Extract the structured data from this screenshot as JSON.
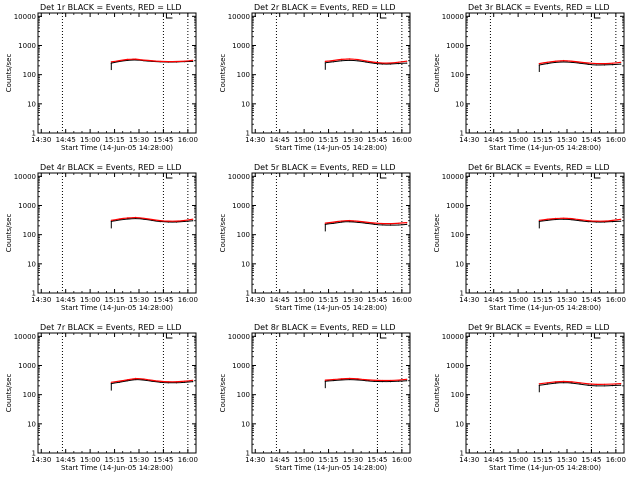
{
  "chart_data": [
    {
      "type": "line",
      "title": "Det 1r  BLACK = Events, RED = LLD",
      "xlabel": "Start Time (14-Jun-05 14:28:00)",
      "ylabel": "Counts/sec",
      "x_ticks": [
        "14:30",
        "14:45",
        "15:00",
        "15:15",
        "15:30",
        "15:45",
        "16:00"
      ],
      "y_ticks": [
        "1",
        "10",
        "100",
        "1000",
        "10000"
      ],
      "xlim": [
        "14:28",
        "16:05"
      ],
      "ylim": [
        1,
        13000
      ],
      "y_scale": "log",
      "vlines_dotted": [
        "14:43",
        "15:45",
        "16:00"
      ],
      "x": [
        "15:13",
        "15:18",
        "15:23",
        "15:28",
        "15:33",
        "15:38",
        "15:43",
        "15:48",
        "15:53",
        "15:58",
        "16:03"
      ],
      "series": [
        {
          "name": "Events",
          "color": "#000000",
          "values": [
            250,
            285,
            310,
            320,
            300,
            285,
            275,
            270,
            270,
            280,
            285
          ]
        },
        {
          "name": "LLD",
          "color": "#ff0000",
          "values": [
            275,
            300,
            335,
            345,
            315,
            300,
            285,
            280,
            280,
            290,
            310
          ]
        }
      ]
    },
    {
      "type": "line",
      "title": "Det 2r  BLACK = Events, RED = LLD",
      "xlabel": "Start Time (14-Jun-05 14:28:00)",
      "ylabel": "Counts/sec",
      "x_ticks": [
        "14:30",
        "14:45",
        "15:00",
        "15:15",
        "15:30",
        "15:45",
        "16:00"
      ],
      "y_ticks": [
        "1",
        "10",
        "100",
        "1000",
        "10000"
      ],
      "xlim": [
        "14:28",
        "16:05"
      ],
      "ylim": [
        1,
        13000
      ],
      "y_scale": "log",
      "vlines_dotted": [
        "14:43",
        "15:45",
        "16:00"
      ],
      "x": [
        "15:13",
        "15:18",
        "15:23",
        "15:28",
        "15:33",
        "15:38",
        "15:43",
        "15:48",
        "15:53",
        "15:58",
        "16:03"
      ],
      "series": [
        {
          "name": "Events",
          "color": "#000000",
          "values": [
            255,
            275,
            300,
            310,
            300,
            270,
            245,
            230,
            230,
            240,
            250
          ]
        },
        {
          "name": "LLD",
          "color": "#ff0000",
          "values": [
            285,
            305,
            335,
            350,
            330,
            295,
            265,
            250,
            250,
            265,
            290
          ]
        }
      ]
    },
    {
      "type": "line",
      "title": "Det 3r  BLACK = Events, RED = LLD",
      "xlabel": "Start Time (14-Jun-05 14:28:00)",
      "ylabel": "Counts/sec",
      "x_ticks": [
        "14:30",
        "14:45",
        "15:00",
        "15:15",
        "15:30",
        "15:45",
        "16:00"
      ],
      "y_ticks": [
        "1",
        "10",
        "100",
        "1000",
        "10000"
      ],
      "xlim": [
        "14:28",
        "16:05"
      ],
      "ylim": [
        1,
        13000
      ],
      "y_scale": "log",
      "vlines_dotted": [
        "14:43",
        "15:45",
        "16:00"
      ],
      "x": [
        "15:13",
        "15:18",
        "15:23",
        "15:28",
        "15:33",
        "15:38",
        "15:43",
        "15:48",
        "15:53",
        "15:58",
        "16:03"
      ],
      "series": [
        {
          "name": "Events",
          "color": "#000000",
          "values": [
            215,
            240,
            265,
            275,
            265,
            245,
            225,
            215,
            215,
            220,
            230
          ]
        },
        {
          "name": "LLD",
          "color": "#ff0000",
          "values": [
            240,
            265,
            290,
            305,
            290,
            270,
            250,
            240,
            238,
            245,
            265
          ]
        }
      ]
    },
    {
      "type": "line",
      "title": "Det 4r  BLACK = Events, RED = LLD",
      "xlabel": "Start Time (14-Jun-05 14:28:00)",
      "ylabel": "Counts/sec",
      "x_ticks": [
        "14:30",
        "14:45",
        "15:00",
        "15:15",
        "15:30",
        "15:45",
        "16:00"
      ],
      "y_ticks": [
        "1",
        "10",
        "100",
        "1000",
        "10000"
      ],
      "xlim": [
        "14:28",
        "16:05"
      ],
      "ylim": [
        1,
        13000
      ],
      "y_scale": "log",
      "vlines_dotted": [
        "14:43",
        "15:45",
        "16:00"
      ],
      "x": [
        "15:13",
        "15:18",
        "15:23",
        "15:28",
        "15:33",
        "15:38",
        "15:43",
        "15:48",
        "15:53",
        "15:58",
        "16:03"
      ],
      "series": [
        {
          "name": "Events",
          "color": "#000000",
          "values": [
            285,
            320,
            345,
            360,
            340,
            305,
            280,
            270,
            270,
            285,
            300
          ]
        },
        {
          "name": "LLD",
          "color": "#ff0000",
          "values": [
            310,
            345,
            375,
            390,
            365,
            330,
            300,
            290,
            290,
            305,
            340
          ]
        }
      ]
    },
    {
      "type": "line",
      "title": "Det 5r  BLACK = Events, RED = LLD",
      "xlabel": "Start Time (14-Jun-05 14:28:00)",
      "ylabel": "Counts/sec",
      "x_ticks": [
        "14:30",
        "14:45",
        "15:00",
        "15:15",
        "15:30",
        "15:45",
        "16:00"
      ],
      "y_ticks": [
        "1",
        "10",
        "100",
        "1000",
        "10000"
      ],
      "xlim": [
        "14:28",
        "16:05"
      ],
      "ylim": [
        1,
        13000
      ],
      "y_scale": "log",
      "vlines_dotted": [
        "14:43",
        "15:45",
        "16:00"
      ],
      "x": [
        "15:13",
        "15:18",
        "15:23",
        "15:28",
        "15:33",
        "15:38",
        "15:43",
        "15:48",
        "15:53",
        "15:58",
        "16:03"
      ],
      "series": [
        {
          "name": "Events",
          "color": "#000000",
          "values": [
            225,
            245,
            270,
            280,
            265,
            245,
            225,
            215,
            212,
            215,
            225
          ]
        },
        {
          "name": "LLD",
          "color": "#ff0000",
          "values": [
            250,
            270,
            295,
            305,
            290,
            270,
            250,
            240,
            238,
            245,
            260
          ]
        }
      ]
    },
    {
      "type": "line",
      "title": "Det 6r  BLACK = Events, RED = LLD",
      "xlabel": "Start Time (14-Jun-05 14:28:00)",
      "ylabel": "Counts/sec",
      "x_ticks": [
        "14:30",
        "14:45",
        "15:00",
        "15:15",
        "15:30",
        "15:45",
        "16:00"
      ],
      "y_ticks": [
        "1",
        "10",
        "100",
        "1000",
        "10000"
      ],
      "xlim": [
        "14:28",
        "16:05"
      ],
      "ylim": [
        1,
        13000
      ],
      "y_scale": "log",
      "vlines_dotted": [
        "14:43",
        "15:45",
        "16:00"
      ],
      "x": [
        "15:13",
        "15:18",
        "15:23",
        "15:28",
        "15:33",
        "15:38",
        "15:43",
        "15:48",
        "15:53",
        "15:58",
        "16:03"
      ],
      "series": [
        {
          "name": "Events",
          "color": "#000000",
          "values": [
            285,
            310,
            330,
            340,
            325,
            300,
            280,
            270,
            270,
            280,
            290
          ]
        },
        {
          "name": "LLD",
          "color": "#ff0000",
          "values": [
            310,
            335,
            360,
            370,
            355,
            325,
            300,
            290,
            290,
            305,
            335
          ]
        }
      ]
    },
    {
      "type": "line",
      "title": "Det 7r  BLACK = Events, RED = LLD",
      "xlabel": "Start Time (14-Jun-05 14:28:00)",
      "ylabel": "Counts/sec",
      "x_ticks": [
        "14:30",
        "14:45",
        "15:00",
        "15:15",
        "15:30",
        "15:45",
        "16:00"
      ],
      "y_ticks": [
        "1",
        "10",
        "100",
        "1000",
        "10000"
      ],
      "xlim": [
        "14:28",
        "16:05"
      ],
      "ylim": [
        1,
        13000
      ],
      "y_scale": "log",
      "vlines_dotted": [
        "14:43",
        "15:45",
        "16:00"
      ],
      "x": [
        "15:13",
        "15:18",
        "15:23",
        "15:28",
        "15:33",
        "15:38",
        "15:43",
        "15:48",
        "15:53",
        "15:58",
        "16:03"
      ],
      "series": [
        {
          "name": "Events",
          "color": "#000000",
          "values": [
            240,
            265,
            300,
            330,
            320,
            290,
            265,
            255,
            255,
            265,
            280
          ]
        },
        {
          "name": "LLD",
          "color": "#ff0000",
          "values": [
            265,
            290,
            325,
            360,
            345,
            310,
            285,
            275,
            275,
            290,
            310
          ]
        }
      ]
    },
    {
      "type": "line",
      "title": "Det 8r  BLACK = Events, RED = LLD",
      "xlabel": "Start Time (14-Jun-05 14:28:00)",
      "ylabel": "Counts/sec",
      "x_ticks": [
        "14:30",
        "14:45",
        "15:00",
        "15:15",
        "15:30",
        "15:45",
        "16:00"
      ],
      "y_ticks": [
        "1",
        "10",
        "100",
        "1000",
        "10000"
      ],
      "xlim": [
        "14:28",
        "16:05"
      ],
      "ylim": [
        1,
        13000
      ],
      "y_scale": "log",
      "vlines_dotted": [
        "14:43",
        "15:45",
        "16:00"
      ],
      "x": [
        "15:13",
        "15:18",
        "15:23",
        "15:28",
        "15:33",
        "15:38",
        "15:43",
        "15:48",
        "15:53",
        "15:58",
        "16:03"
      ],
      "series": [
        {
          "name": "Events",
          "color": "#000000",
          "values": [
            290,
            305,
            320,
            330,
            320,
            300,
            285,
            280,
            280,
            290,
            300
          ]
        },
        {
          "name": "LLD",
          "color": "#ff0000",
          "values": [
            315,
            330,
            350,
            360,
            350,
            325,
            310,
            305,
            305,
            315,
            335
          ]
        }
      ]
    },
    {
      "type": "line",
      "title": "Det 9r  BLACK = Events, RED = LLD",
      "xlabel": "Start Time (14-Jun-05 14:28:00)",
      "ylabel": "Counts/sec",
      "x_ticks": [
        "14:30",
        "14:45",
        "15:00",
        "15:15",
        "15:30",
        "15:45",
        "16:00"
      ],
      "y_ticks": [
        "1",
        "10",
        "100",
        "1000",
        "10000"
      ],
      "xlim": [
        "14:28",
        "16:05"
      ],
      "ylim": [
        1,
        13000
      ],
      "y_scale": "log",
      "vlines_dotted": [
        "14:43",
        "15:45",
        "16:00"
      ],
      "x": [
        "15:13",
        "15:18",
        "15:23",
        "15:28",
        "15:33",
        "15:38",
        "15:43",
        "15:48",
        "15:53",
        "15:58",
        "16:03"
      ],
      "series": [
        {
          "name": "Events",
          "color": "#000000",
          "values": [
            210,
            230,
            250,
            260,
            250,
            230,
            210,
            200,
            200,
            205,
            210
          ]
        },
        {
          "name": "LLD",
          "color": "#ff0000",
          "values": [
            235,
            255,
            275,
            285,
            275,
            255,
            235,
            225,
            225,
            230,
            240
          ]
        }
      ]
    }
  ]
}
